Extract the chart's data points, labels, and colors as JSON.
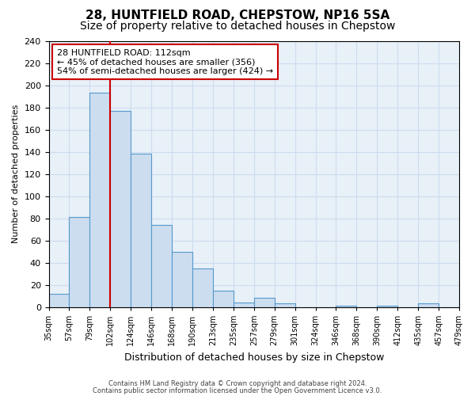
{
  "title": "28, HUNTFIELD ROAD, CHEPSTOW, NP16 5SA",
  "subtitle": "Size of property relative to detached houses in Chepstow",
  "xlabel": "Distribution of detached houses by size in Chepstow",
  "ylabel": "Number of detached properties",
  "bar_values": [
    12,
    81,
    193,
    177,
    138,
    74,
    50,
    35,
    15,
    4,
    8,
    3,
    0,
    0,
    1,
    0,
    1,
    0,
    3,
    0
  ],
  "bar_labels": [
    "35sqm",
    "57sqm",
    "79sqm",
    "102sqm",
    "124sqm",
    "146sqm",
    "168sqm",
    "190sqm",
    "213sqm",
    "235sqm",
    "257sqm",
    "279sqm",
    "301sqm",
    "324sqm",
    "346sqm",
    "368sqm",
    "390sqm",
    "412sqm",
    "435sqm",
    "457sqm",
    "479sqm"
  ],
  "bar_color": "#ccddf0",
  "bar_edge_color": "#5599cc",
  "vline_color": "#cc0000",
  "ylim": [
    0,
    240
  ],
  "yticks": [
    0,
    20,
    40,
    60,
    80,
    100,
    120,
    140,
    160,
    180,
    200,
    220,
    240
  ],
  "annotation_title": "28 HUNTFIELD ROAD: 112sqm",
  "annotation_line1": "← 45% of detached houses are smaller (356)",
  "annotation_line2": "54% of semi-detached houses are larger (424) →",
  "annotation_box_color": "#ffffff",
  "annotation_box_edge": "#cc0000",
  "footer_line1": "Contains HM Land Registry data © Crown copyright and database right 2024.",
  "footer_line2": "Contains public sector information licensed under the Open Government Licence v3.0.",
  "background_color": "#ffffff",
  "grid_color": "#ccddee",
  "axes_bg_color": "#e8f0f8",
  "title_fontsize": 11,
  "subtitle_fontsize": 10
}
